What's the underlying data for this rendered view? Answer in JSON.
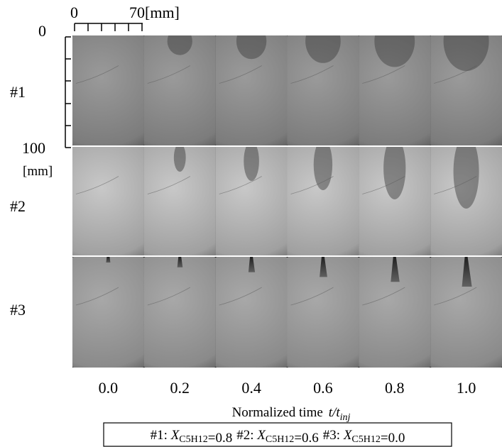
{
  "scale_bars": {
    "horizontal": {
      "start": "0",
      "end": "70[mm]"
    },
    "vertical": {
      "start": "0",
      "end": "100",
      "unit": "[mm]"
    }
  },
  "rows": [
    "#1",
    "#2",
    "#3"
  ],
  "columns": [
    "0.0",
    "0.2",
    "0.4",
    "0.6",
    "0.8",
    "1.0"
  ],
  "x_axis_label": {
    "text": "Normalized time",
    "symbol": "t/t",
    "subscript": "inj"
  },
  "legend": [
    {
      "prefix": "#1: ",
      "symbol": "X",
      "subscript": "C5H12",
      "suffix": "=0.8"
    },
    {
      "prefix": "#2: ",
      "symbol": "X",
      "subscript": "C5H12",
      "suffix": "=0.6"
    },
    {
      "prefix": "#3: ",
      "symbol": "X",
      "subscript": "C5H12",
      "suffix": "=0.0"
    }
  ]
}
